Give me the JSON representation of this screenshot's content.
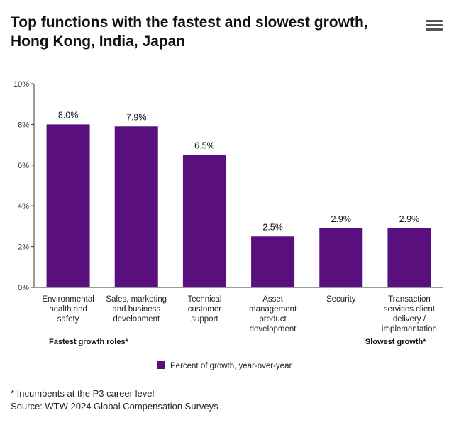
{
  "header": {
    "title_line1": "Top functions with the fastest and slowest growth,",
    "title_line2": "Hong Kong, India, Japan",
    "menu_icon": "hamburger-menu-icon"
  },
  "chart_data": {
    "type": "bar",
    "categories": [
      [
        "Environmental",
        "health and",
        "safety"
      ],
      [
        "Sales, marketing",
        "and business",
        "development"
      ],
      [
        "Technical",
        "customer",
        "support"
      ],
      [
        "Asset",
        "management",
        "product",
        "development"
      ],
      [
        "Security"
      ],
      [
        "Transaction",
        "services client",
        "delivery /",
        "implementation"
      ]
    ],
    "series": [
      {
        "name": "Percent of growth, year-over-year",
        "values": [
          8.0,
          7.9,
          6.5,
          2.5,
          2.9,
          2.9
        ],
        "color": "#5a0f7f"
      }
    ],
    "data_labels": [
      "8.0%",
      "7.9%",
      "6.5%",
      "2.5%",
      "2.9%",
      "2.9%"
    ],
    "ylim": [
      0,
      10
    ],
    "yticks": [
      0,
      2,
      4,
      6,
      8,
      10
    ],
    "ytick_labels": [
      "0%",
      "2%",
      "4%",
      "6%",
      "8%",
      "10%"
    ],
    "group_labels": [
      "Fastest growth roles*",
      "Slowest growth*"
    ],
    "legend": {
      "label": "Percent of growth, year-over-year",
      "position": "bottom"
    },
    "grid": false
  },
  "footnotes": {
    "note": "* Incumbents at the P3 career level",
    "source": "Source: WTW 2024 Global Compensation Surveys"
  }
}
